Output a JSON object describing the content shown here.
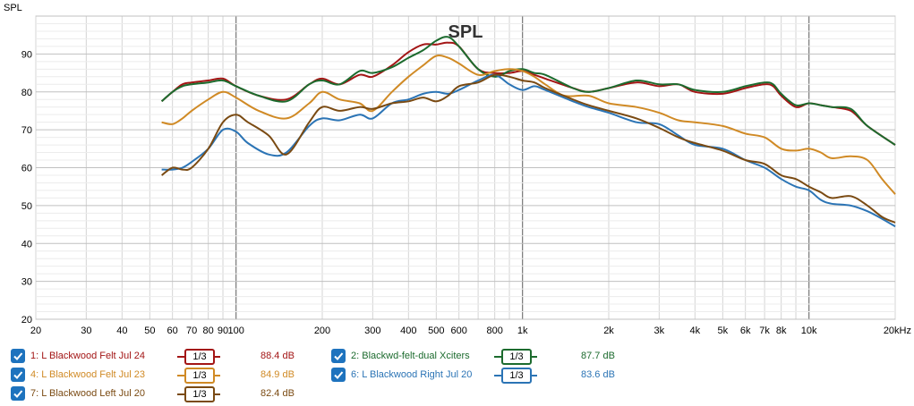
{
  "chart_data": {
    "type": "line",
    "title": "SPL",
    "ylabel": "SPL",
    "xlabel": "",
    "x_scale": "log",
    "xlim": [
      20,
      20000
    ],
    "ylim": [
      20,
      100
    ],
    "grid": true,
    "x_ticks": [
      {
        "v": 20,
        "label": "20"
      },
      {
        "v": 30,
        "label": "30"
      },
      {
        "v": 40,
        "label": "40"
      },
      {
        "v": 50,
        "label": "50"
      },
      {
        "v": 60,
        "label": "60"
      },
      {
        "v": 70,
        "label": "70"
      },
      {
        "v": 80,
        "label": "80"
      },
      {
        "v": 90,
        "label": "90"
      },
      {
        "v": 100,
        "label": "100"
      },
      {
        "v": 200,
        "label": "200"
      },
      {
        "v": 300,
        "label": "300"
      },
      {
        "v": 400,
        "label": "400"
      },
      {
        "v": 500,
        "label": "500"
      },
      {
        "v": 600,
        "label": "600"
      },
      {
        "v": 800,
        "label": "800"
      },
      {
        "v": 1000,
        "label": "1k"
      },
      {
        "v": 2000,
        "label": "2k"
      },
      {
        "v": 3000,
        "label": "3k"
      },
      {
        "v": 4000,
        "label": "4k"
      },
      {
        "v": 5000,
        "label": "5k"
      },
      {
        "v": 6000,
        "label": "6k"
      },
      {
        "v": 7000,
        "label": "7k"
      },
      {
        "v": 8000,
        "label": "8k"
      },
      {
        "v": 10000,
        "label": "10k"
      },
      {
        "v": 20000,
        "label": "20kHz"
      }
    ],
    "y_ticks": [
      20,
      30,
      40,
      50,
      60,
      70,
      80,
      90
    ],
    "series": [
      {
        "name": "1: L Blackwood Felt Jul 24",
        "color": "#a31515",
        "smoothing": "1/3",
        "level": "88.4 dB",
        "points": [
          [
            55,
            77.5
          ],
          [
            60,
            80
          ],
          [
            65,
            82
          ],
          [
            70,
            82.5
          ],
          [
            80,
            83
          ],
          [
            90,
            83.5
          ],
          [
            100,
            81.5
          ],
          [
            120,
            79
          ],
          [
            150,
            78
          ],
          [
            180,
            82
          ],
          [
            200,
            83.5
          ],
          [
            230,
            82
          ],
          [
            270,
            84.5
          ],
          [
            300,
            84
          ],
          [
            350,
            87
          ],
          [
            400,
            90.5
          ],
          [
            450,
            92.5
          ],
          [
            500,
            92.5
          ],
          [
            550,
            93
          ],
          [
            600,
            92
          ],
          [
            700,
            86
          ],
          [
            800,
            85
          ],
          [
            900,
            85
          ],
          [
            1000,
            85.5
          ],
          [
            1100,
            84.5
          ],
          [
            1200,
            83.5
          ],
          [
            1500,
            81
          ],
          [
            1700,
            80
          ],
          [
            2000,
            81
          ],
          [
            2500,
            82.5
          ],
          [
            3000,
            81.5
          ],
          [
            3500,
            82
          ],
          [
            4000,
            80
          ],
          [
            5000,
            79.5
          ],
          [
            6000,
            81
          ],
          [
            7000,
            82
          ],
          [
            7500,
            81.5
          ],
          [
            8000,
            79
          ],
          [
            9000,
            76
          ],
          [
            10000,
            77
          ],
          [
            11000,
            76.5
          ],
          [
            12000,
            76
          ],
          [
            14000,
            75
          ],
          [
            16000,
            71
          ],
          [
            20000,
            66
          ]
        ]
      },
      {
        "name": "2: Blackwd-felt-dual Xciters",
        "color": "#1c6b2e",
        "smoothing": "1/3",
        "level": "87.7 dB",
        "points": [
          [
            55,
            77.5
          ],
          [
            60,
            80
          ],
          [
            65,
            81.5
          ],
          [
            70,
            82
          ],
          [
            80,
            82.5
          ],
          [
            90,
            83
          ],
          [
            100,
            81.5
          ],
          [
            120,
            79
          ],
          [
            150,
            77.5
          ],
          [
            180,
            82
          ],
          [
            200,
            83
          ],
          [
            230,
            82
          ],
          [
            270,
            85.5
          ],
          [
            300,
            85
          ],
          [
            350,
            86.5
          ],
          [
            400,
            89
          ],
          [
            450,
            91
          ],
          [
            500,
            93.5
          ],
          [
            550,
            94.5
          ],
          [
            600,
            92
          ],
          [
            700,
            86
          ],
          [
            800,
            84
          ],
          [
            900,
            85.5
          ],
          [
            1000,
            86
          ],
          [
            1100,
            85
          ],
          [
            1200,
            84.5
          ],
          [
            1500,
            81
          ],
          [
            1700,
            80
          ],
          [
            2000,
            81
          ],
          [
            2500,
            83
          ],
          [
            3000,
            82
          ],
          [
            3500,
            82
          ],
          [
            4000,
            80.5
          ],
          [
            5000,
            80
          ],
          [
            6000,
            81.5
          ],
          [
            7000,
            82.5
          ],
          [
            7500,
            82
          ],
          [
            8000,
            79.5
          ],
          [
            9000,
            76.5
          ],
          [
            10000,
            77
          ],
          [
            11000,
            76.5
          ],
          [
            12000,
            76
          ],
          [
            14000,
            75.5
          ],
          [
            16000,
            71
          ],
          [
            20000,
            66
          ]
        ]
      },
      {
        "name": "4: L Blackwood Felt Jul 23",
        "color": "#d08a25",
        "smoothing": "1/3",
        "level": "84.9 dB",
        "points": [
          [
            55,
            72
          ],
          [
            60,
            71.5
          ],
          [
            65,
            73
          ],
          [
            70,
            75
          ],
          [
            80,
            78
          ],
          [
            90,
            80
          ],
          [
            100,
            78.5
          ],
          [
            120,
            75
          ],
          [
            150,
            73
          ],
          [
            180,
            77
          ],
          [
            200,
            80
          ],
          [
            230,
            78
          ],
          [
            270,
            77
          ],
          [
            300,
            75
          ],
          [
            350,
            80
          ],
          [
            400,
            84
          ],
          [
            450,
            87
          ],
          [
            500,
            89.5
          ],
          [
            550,
            89
          ],
          [
            600,
            87.5
          ],
          [
            700,
            84.5
          ],
          [
            800,
            85.5
          ],
          [
            900,
            86
          ],
          [
            1000,
            85.5
          ],
          [
            1100,
            84
          ],
          [
            1200,
            82
          ],
          [
            1400,
            79
          ],
          [
            1700,
            79
          ],
          [
            2000,
            77
          ],
          [
            2500,
            76
          ],
          [
            3000,
            74.5
          ],
          [
            3500,
            72.5
          ],
          [
            4000,
            72
          ],
          [
            5000,
            71
          ],
          [
            6000,
            69
          ],
          [
            7000,
            68
          ],
          [
            8000,
            65
          ],
          [
            9000,
            64.5
          ],
          [
            10000,
            65
          ],
          [
            11000,
            64
          ],
          [
            12000,
            62.5
          ],
          [
            14000,
            63
          ],
          [
            16000,
            62
          ],
          [
            18000,
            57
          ],
          [
            20000,
            53
          ]
        ]
      },
      {
        "name": "6: L Blackwood Right Jul 20",
        "color": "#2b74b5",
        "smoothing": "1/3",
        "level": "83.6 dB",
        "points": [
          [
            55,
            59.5
          ],
          [
            60,
            59.5
          ],
          [
            65,
            60
          ],
          [
            70,
            61.5
          ],
          [
            80,
            65
          ],
          [
            90,
            70
          ],
          [
            100,
            69.5
          ],
          [
            110,
            66.5
          ],
          [
            130,
            63.5
          ],
          [
            150,
            64
          ],
          [
            180,
            71
          ],
          [
            200,
            73
          ],
          [
            230,
            72.5
          ],
          [
            270,
            74
          ],
          [
            300,
            73
          ],
          [
            350,
            77
          ],
          [
            400,
            78
          ],
          [
            450,
            79.5
          ],
          [
            500,
            80
          ],
          [
            550,
            79.5
          ],
          [
            600,
            80.5
          ],
          [
            700,
            83
          ],
          [
            800,
            84.5
          ],
          [
            900,
            82
          ],
          [
            1000,
            80.5
          ],
          [
            1100,
            81.5
          ],
          [
            1200,
            80.5
          ],
          [
            1500,
            77.5
          ],
          [
            1700,
            76
          ],
          [
            2000,
            74.5
          ],
          [
            2500,
            72
          ],
          [
            3000,
            71.5
          ],
          [
            3500,
            68.5
          ],
          [
            4000,
            66
          ],
          [
            5000,
            65
          ],
          [
            6000,
            62
          ],
          [
            7000,
            60
          ],
          [
            8000,
            57
          ],
          [
            9000,
            55
          ],
          [
            10000,
            54
          ],
          [
            11000,
            51.5
          ],
          [
            12000,
            50.5
          ],
          [
            14000,
            50
          ],
          [
            16000,
            48.5
          ],
          [
            18000,
            46.5
          ],
          [
            20000,
            44.5
          ]
        ]
      },
      {
        "name": "7: L Blackwood Left Jul 20",
        "color": "#7a4a12",
        "smoothing": "1/3",
        "level": "82.4 dB",
        "points": [
          [
            55,
            58
          ],
          [
            60,
            60
          ],
          [
            65,
            59.5
          ],
          [
            70,
            60
          ],
          [
            80,
            65
          ],
          [
            90,
            72
          ],
          [
            100,
            74
          ],
          [
            110,
            72
          ],
          [
            130,
            68.5
          ],
          [
            150,
            63.5
          ],
          [
            180,
            72
          ],
          [
            200,
            76
          ],
          [
            230,
            75
          ],
          [
            270,
            76
          ],
          [
            300,
            75.5
          ],
          [
            350,
            77
          ],
          [
            400,
            77.5
          ],
          [
            450,
            78.5
          ],
          [
            500,
            77.5
          ],
          [
            550,
            79
          ],
          [
            600,
            81.5
          ],
          [
            700,
            82.5
          ],
          [
            800,
            84.5
          ],
          [
            900,
            84
          ],
          [
            1000,
            83
          ],
          [
            1100,
            82.5
          ],
          [
            1200,
            81
          ],
          [
            1500,
            78
          ],
          [
            1700,
            76.5
          ],
          [
            2000,
            75
          ],
          [
            2500,
            73
          ],
          [
            3000,
            70.5
          ],
          [
            3500,
            68
          ],
          [
            4000,
            66.5
          ],
          [
            5000,
            64.5
          ],
          [
            6000,
            62
          ],
          [
            7000,
            61
          ],
          [
            8000,
            58
          ],
          [
            9000,
            57
          ],
          [
            10000,
            55
          ],
          [
            11000,
            53.5
          ],
          [
            12000,
            52
          ],
          [
            14000,
            52.5
          ],
          [
            16000,
            50
          ],
          [
            18000,
            47
          ],
          [
            20000,
            45.5
          ]
        ]
      }
    ]
  },
  "legend": {
    "items": [
      {
        "name": "1: L Blackwood Felt Jul 24",
        "color": "#a31515",
        "smoothing": "1/3",
        "level": "88.4 dB"
      },
      {
        "name": "4: L Blackwood Felt Jul 23",
        "color": "#d08a25",
        "smoothing": "1/3",
        "level": "84.9 dB"
      },
      {
        "name": "7: L Blackwood Left Jul 20",
        "color": "#7a4a12",
        "smoothing": "1/3",
        "level": "82.4 dB"
      },
      {
        "name": "2: Blackwd-felt-dual Xciters",
        "color": "#1c6b2e",
        "smoothing": "1/3",
        "level": "87.7 dB"
      },
      {
        "name": "6: L Blackwood Right Jul 20",
        "color": "#2b74b5",
        "smoothing": "1/3",
        "level": "83.6 dB"
      }
    ]
  }
}
